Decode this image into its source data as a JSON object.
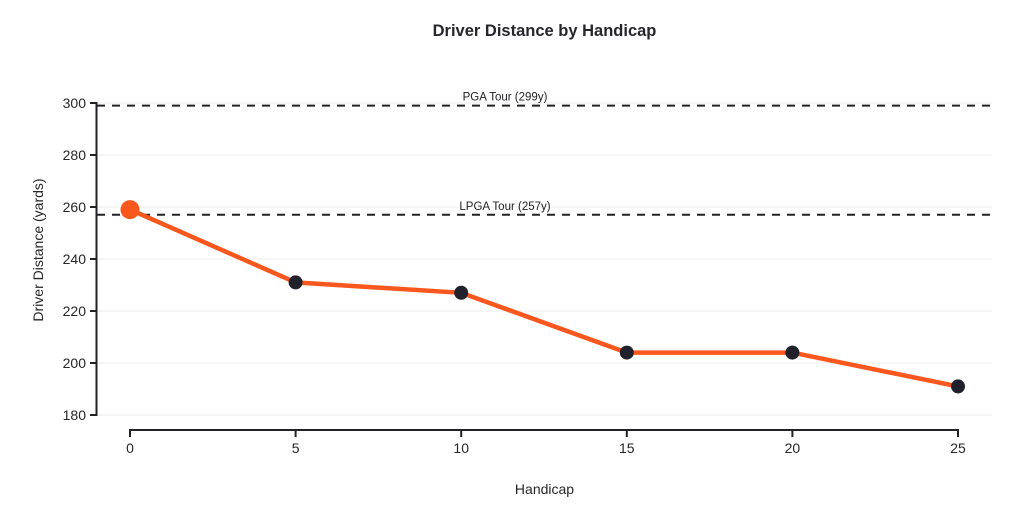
{
  "chart_data": {
    "type": "line",
    "title": "Driver Distance by Handicap",
    "xlabel": "Handicap",
    "ylabel": "Driver Distance (yards)",
    "x": [
      0,
      5,
      10,
      15,
      20,
      25
    ],
    "y": [
      259,
      231,
      227,
      204,
      204,
      191
    ],
    "xticks": [
      0,
      5,
      10,
      15,
      20,
      25
    ],
    "yticks": [
      180,
      200,
      220,
      240,
      260,
      280,
      300
    ],
    "xlim": [
      0,
      25
    ],
    "ylim": [
      180,
      300
    ],
    "grid": "horizontal",
    "legend": "none",
    "line_color": "#F9571D",
    "point_color": "#21212B",
    "highlight_point": {
      "x": 0,
      "y": 259,
      "color": "#F9571D"
    },
    "reference_lines": [
      {
        "label": "PGA Tour (299y)",
        "value": 299
      },
      {
        "label": "LPGA Tour (257y)",
        "value": 257
      }
    ],
    "colors": {
      "axis": "#222226",
      "grid": "#ececec",
      "tick_text": "#262626",
      "annotation_text": "#222226",
      "background": "#ffffff"
    }
  }
}
